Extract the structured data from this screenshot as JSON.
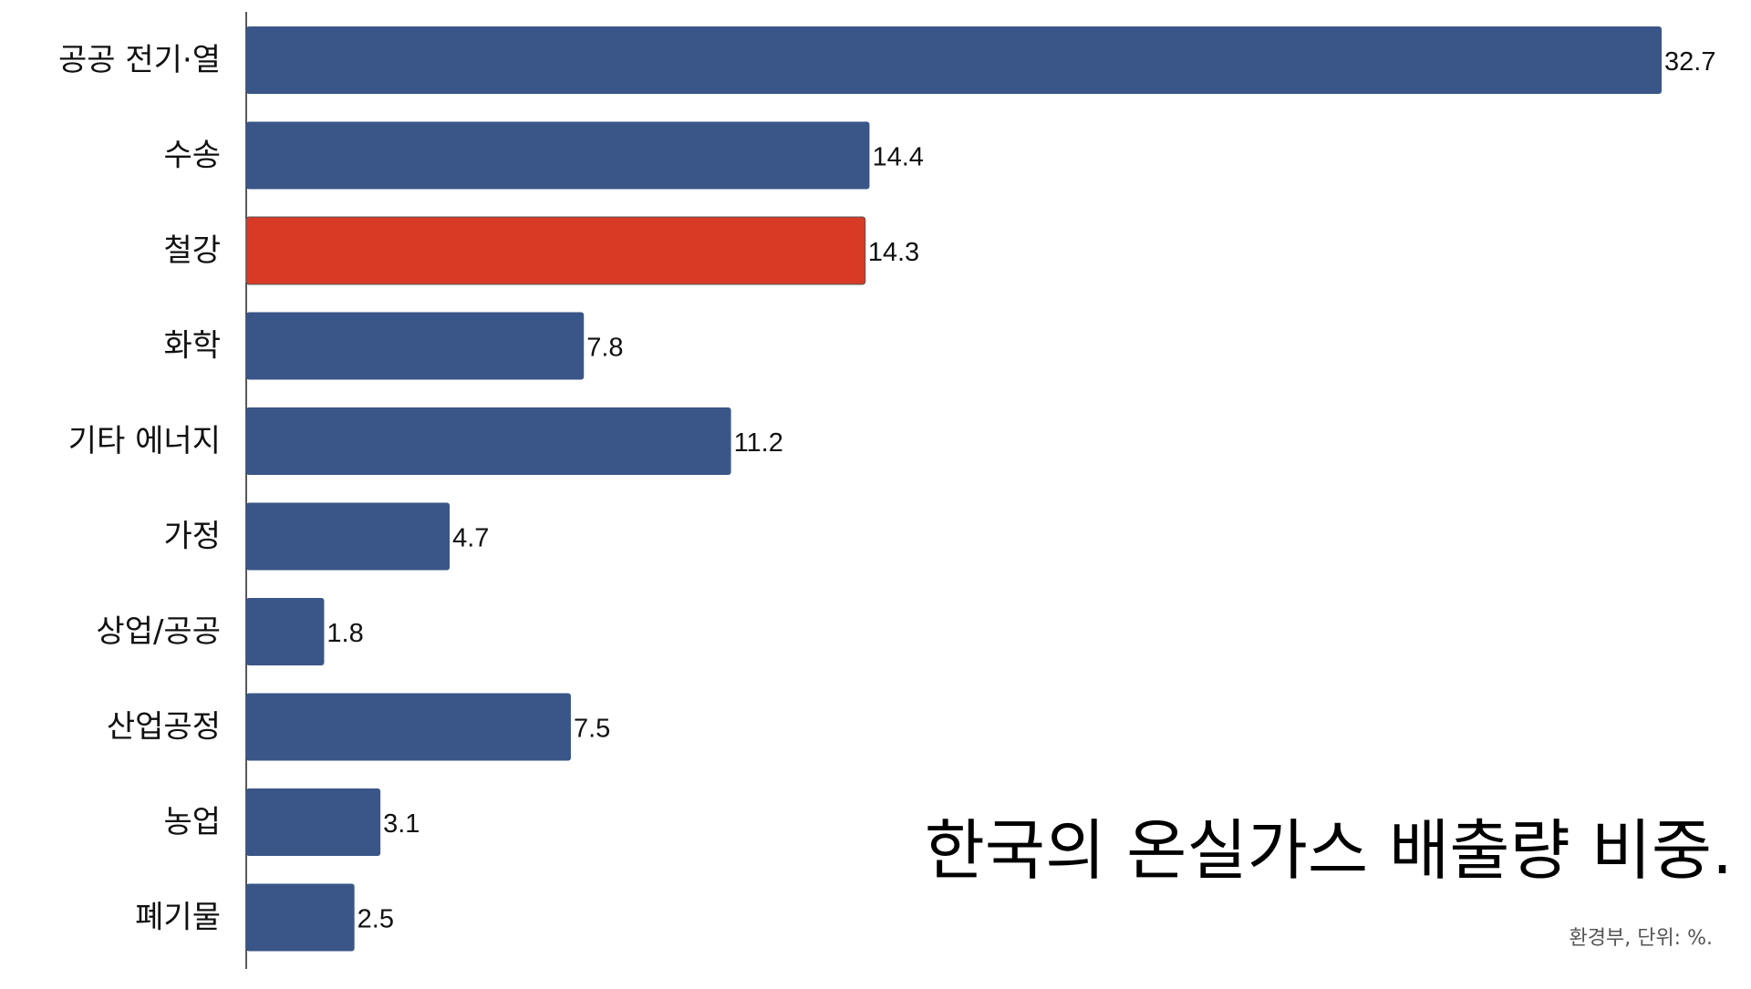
{
  "chart_data": {
    "type": "bar",
    "orientation": "horizontal",
    "categories": [
      "공공 전기·열",
      "수송",
      "철강",
      "화학",
      "기타 에너지",
      "가정",
      "상업/공공",
      "산업공정",
      "농업",
      "폐기물"
    ],
    "values": [
      32.7,
      14.4,
      14.3,
      7.8,
      11.2,
      4.7,
      1.8,
      7.5,
      3.1,
      2.5
    ],
    "value_labels": [
      "32.7",
      "14.4",
      "14.3",
      "7.8",
      "11.2",
      "4.7",
      "1.8",
      "7.5",
      "3.1",
      "2.5"
    ],
    "xlim": [
      0,
      32.7
    ],
    "bar_color": "#3a5688",
    "highlight_color": "#d83a26",
    "highlight_category": "철강",
    "title": "한국의 온실가스 배출량 비중.",
    "source_note": "환경부, 단위: %.",
    "grid": false,
    "legend": "none"
  }
}
